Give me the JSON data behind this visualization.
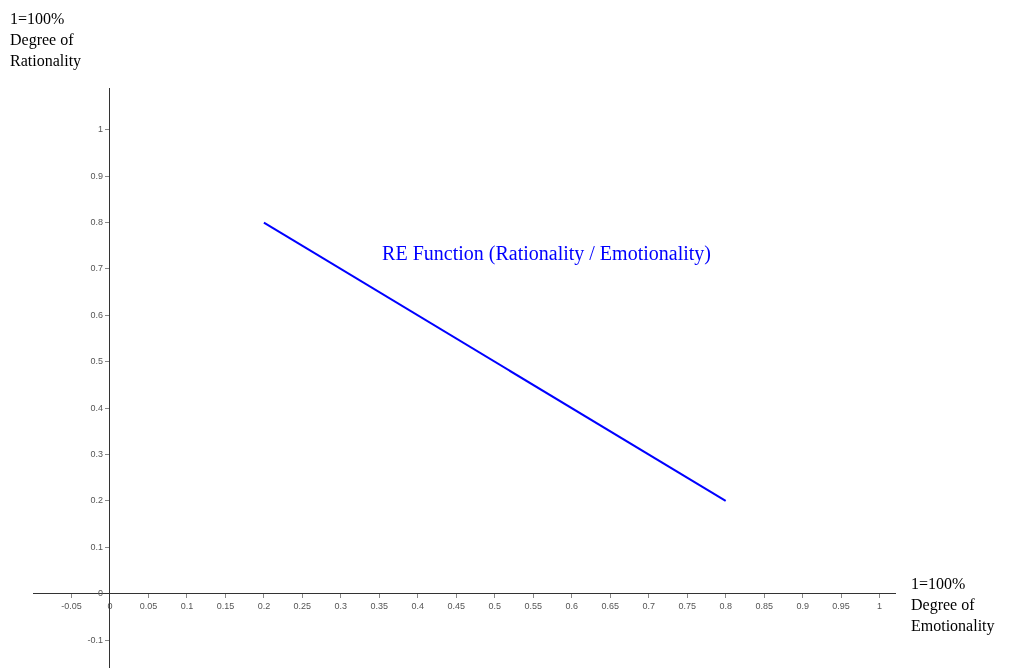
{
  "chart_data": {
    "type": "line",
    "xlabel": "1=100% Degree of Emotionality",
    "ylabel": "1=100% Degree of Rationality",
    "annotations": [
      "RE Function (Rationality / Emotionality)"
    ],
    "series": [
      {
        "x": [
          0.2,
          0.8
        ],
        "values": [
          0.8,
          0.2
        ],
        "color": "#0000ff"
      }
    ],
    "xlim": [
      -0.1,
      1.02
    ],
    "ylim": [
      -0.16,
      1.09
    ],
    "xticks": [
      -0.05,
      0,
      0.05,
      0.1,
      0.15,
      0.2,
      0.25,
      0.3,
      0.35,
      0.4,
      0.45,
      0.5,
      0.55,
      0.6,
      0.65,
      0.7,
      0.75,
      0.8,
      0.85,
      0.9,
      0.95,
      1
    ],
    "yticks": [
      -0.1,
      0,
      0.1,
      0.2,
      0.3,
      0.4,
      0.5,
      0.6,
      0.7,
      0.8,
      0.9,
      1
    ],
    "grid": false,
    "legend": false,
    "marker": "none",
    "line_style": "solid"
  }
}
